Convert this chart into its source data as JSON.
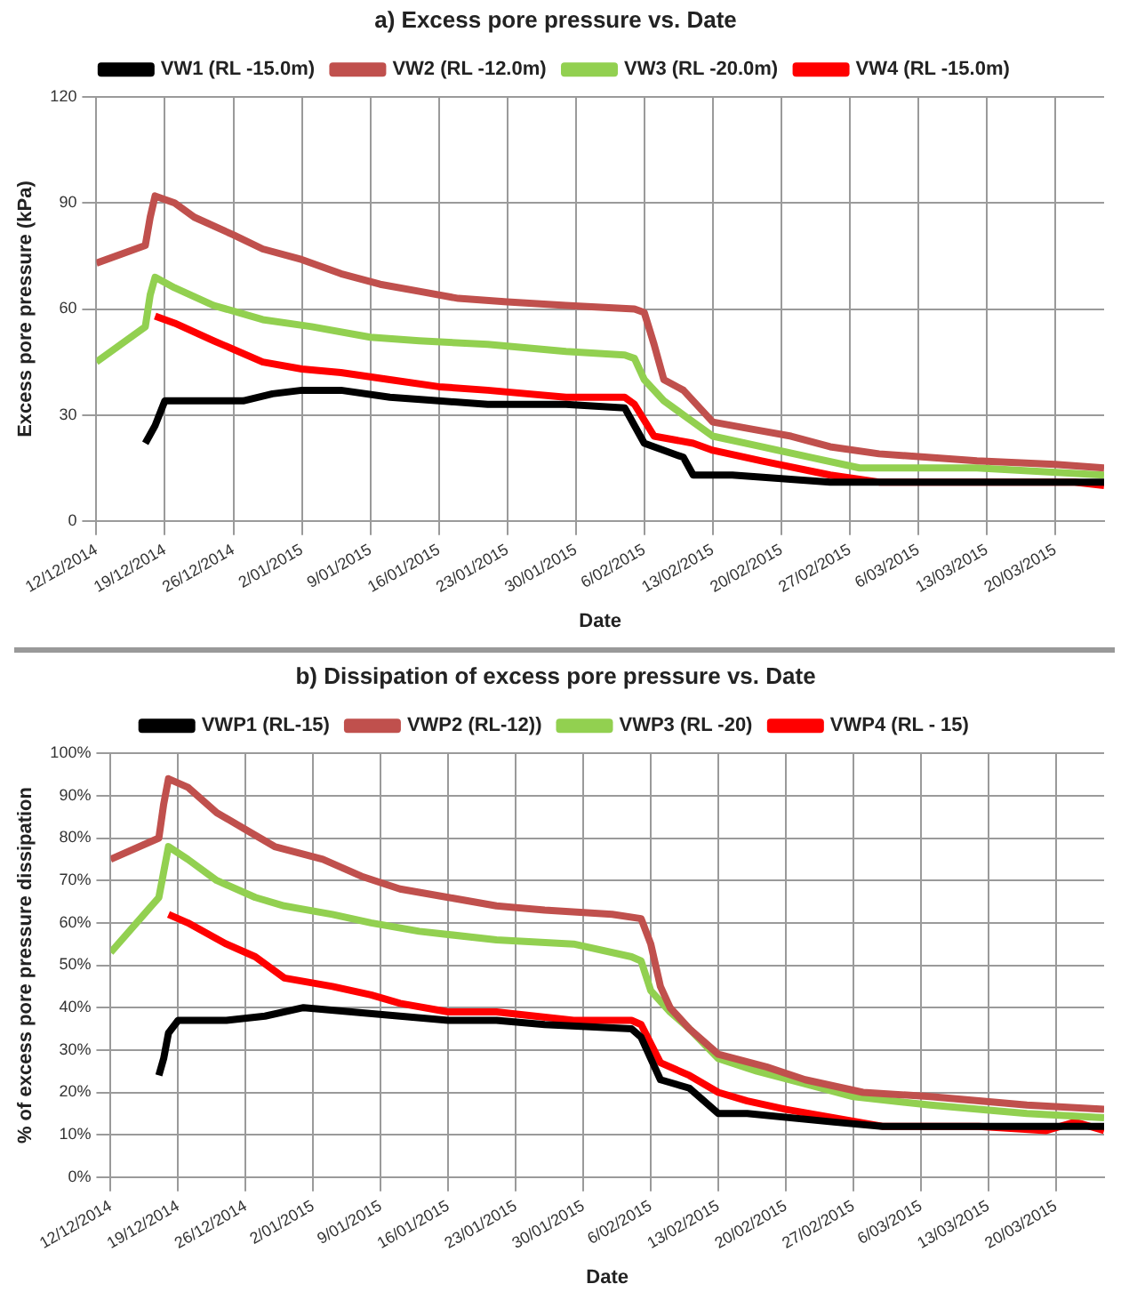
{
  "chart_data": [
    {
      "type": "line",
      "title": "a) Excess pore pressure vs. Date",
      "xlabel": "Date",
      "ylabel": "Excess pore pressure (kPa)",
      "xlim": [
        "2014-12-12",
        "2015-03-25"
      ],
      "xticks": [
        {
          "value": "2014-12-12",
          "label": "12/12/2014"
        },
        {
          "value": "2014-12-19",
          "label": "19/12/2014"
        },
        {
          "value": "2014-12-26",
          "label": "26/12/2014"
        },
        {
          "value": "2015-01-02",
          "label": "2/01/2015"
        },
        {
          "value": "2015-01-09",
          "label": "9/01/2015"
        },
        {
          "value": "2015-01-16",
          "label": "16/01/2015"
        },
        {
          "value": "2015-01-23",
          "label": "23/01/2015"
        },
        {
          "value": "2015-01-30",
          "label": "30/01/2015"
        },
        {
          "value": "2015-02-06",
          "label": "6/02/2015"
        },
        {
          "value": "2015-02-13",
          "label": "13/02/2015"
        },
        {
          "value": "2015-02-20",
          "label": "20/02/2015"
        },
        {
          "value": "2015-02-27",
          "label": "27/02/2015"
        },
        {
          "value": "2015-03-06",
          "label": "6/03/2015"
        },
        {
          "value": "2015-03-13",
          "label": "13/03/2015"
        },
        {
          "value": "2015-03-20",
          "label": "20/03/2015"
        }
      ],
      "ylim": [
        0,
        120
      ],
      "yticks": [
        0,
        30,
        60,
        90,
        120
      ],
      "grid": true,
      "legend": "top",
      "series": [
        {
          "name": "VW1 (RL -15.0m)",
          "color": "#000000",
          "x": [
            "2014-12-17",
            "2014-12-18",
            "2014-12-19",
            "2014-12-22",
            "2014-12-27",
            "2014-12-30",
            "2015-01-02",
            "2015-01-06",
            "2015-01-11",
            "2015-01-16",
            "2015-01-21",
            "2015-01-29",
            "2015-02-04",
            "2015-02-06",
            "2015-02-10",
            "2015-02-11",
            "2015-02-15",
            "2015-02-20",
            "2015-02-25",
            "2015-03-02",
            "2015-03-25"
          ],
          "values": [
            22,
            27,
            34,
            34,
            34,
            36,
            37,
            37,
            35,
            34,
            33,
            33,
            32,
            22,
            18,
            13,
            13,
            12,
            11,
            11,
            11
          ]
        },
        {
          "name": "VW2 (RL -12.0m)",
          "color": "#c0504d",
          "x": [
            "2014-12-12",
            "2014-12-17",
            "2014-12-17T12:00",
            "2014-12-18",
            "2014-12-20",
            "2014-12-22",
            "2014-12-26",
            "2014-12-29",
            "2015-01-02",
            "2015-01-06",
            "2015-01-10",
            "2015-01-14",
            "2015-01-18",
            "2015-01-23",
            "2015-01-29",
            "2015-02-05",
            "2015-02-06",
            "2015-02-07",
            "2015-02-08",
            "2015-02-10",
            "2015-02-13",
            "2015-02-17",
            "2015-02-21",
            "2015-02-25",
            "2015-03-02",
            "2015-03-12",
            "2015-03-20",
            "2015-03-25"
          ],
          "values": [
            73,
            78,
            86,
            92,
            90,
            86,
            81,
            77,
            74,
            70,
            67,
            65,
            63,
            62,
            61,
            60,
            59,
            50,
            40,
            37,
            28,
            26,
            24,
            21,
            19,
            17,
            16,
            15
          ]
        },
        {
          "name": "VW3 (RL -20.0m)",
          "color": "#92d050",
          "x": [
            "2014-12-12",
            "2014-12-17",
            "2014-12-17T12:00",
            "2014-12-18",
            "2014-12-20",
            "2014-12-24",
            "2014-12-29",
            "2015-01-03",
            "2015-01-09",
            "2015-01-14",
            "2015-01-21",
            "2015-01-29",
            "2015-02-04",
            "2015-02-05",
            "2015-02-06",
            "2015-02-08",
            "2015-02-10",
            "2015-02-13",
            "2015-02-18",
            "2015-02-23",
            "2015-02-28",
            "2015-03-12",
            "2015-03-25"
          ],
          "values": [
            45,
            55,
            64,
            69,
            66,
            61,
            57,
            55,
            52,
            51,
            50,
            48,
            47,
            46,
            40,
            34,
            30,
            24,
            21,
            18,
            15,
            15,
            13
          ]
        },
        {
          "name": "VW4 (RL -15.0m)",
          "color": "#ff0000",
          "x": [
            "2014-12-18",
            "2014-12-20",
            "2014-12-24",
            "2014-12-29",
            "2015-01-02",
            "2015-01-06",
            "2015-01-11",
            "2015-01-16",
            "2015-01-21",
            "2015-01-29",
            "2015-02-04",
            "2015-02-05",
            "2015-02-07",
            "2015-02-11",
            "2015-02-13",
            "2015-02-18",
            "2015-02-25",
            "2015-03-02",
            "2015-03-12",
            "2015-03-22",
            "2015-03-25"
          ],
          "values": [
            58,
            56,
            51,
            45,
            43,
            42,
            40,
            38,
            37,
            35,
            35,
            33,
            24,
            22,
            20,
            17,
            13,
            11,
            11,
            11,
            10
          ]
        }
      ]
    },
    {
      "type": "line",
      "title": "b) Dissipation of excess pore pressure vs. Date",
      "xlabel": "Date",
      "ylabel": "% of excess pore pressure dissipation",
      "xlim": [
        "2014-12-12",
        "2015-03-25"
      ],
      "xticks": [
        {
          "value": "2014-12-12",
          "label": "12/12/2014"
        },
        {
          "value": "2014-12-19",
          "label": "19/12/2014"
        },
        {
          "value": "2014-12-26",
          "label": "26/12/2014"
        },
        {
          "value": "2015-01-02",
          "label": "2/01/2015"
        },
        {
          "value": "2015-01-09",
          "label": "9/01/2015"
        },
        {
          "value": "2015-01-16",
          "label": "16/01/2015"
        },
        {
          "value": "2015-01-23",
          "label": "23/01/2015"
        },
        {
          "value": "2015-01-30",
          "label": "30/01/2015"
        },
        {
          "value": "2015-02-06",
          "label": "6/02/2015"
        },
        {
          "value": "2015-02-13",
          "label": "13/02/2015"
        },
        {
          "value": "2015-02-20",
          "label": "20/02/2015"
        },
        {
          "value": "2015-02-27",
          "label": "27/02/2015"
        },
        {
          "value": "2015-03-06",
          "label": "6/03/2015"
        },
        {
          "value": "2015-03-13",
          "label": "13/03/2015"
        },
        {
          "value": "2015-03-20",
          "label": "20/03/2015"
        }
      ],
      "ylim": [
        0,
        100
      ],
      "yticks": [
        {
          "value": 0,
          "label": "0%"
        },
        {
          "value": 10,
          "label": "10%"
        },
        {
          "value": 20,
          "label": "20%"
        },
        {
          "value": 30,
          "label": "30%"
        },
        {
          "value": 40,
          "label": "40%"
        },
        {
          "value": 50,
          "label": "50%"
        },
        {
          "value": 60,
          "label": "60%"
        },
        {
          "value": 70,
          "label": "70%"
        },
        {
          "value": 80,
          "label": "80%"
        },
        {
          "value": 90,
          "label": "90%"
        },
        {
          "value": 100,
          "label": "100%"
        }
      ],
      "grid": true,
      "legend": "top",
      "series": [
        {
          "name": "VWP1 (RL-15)",
          "color": "#000000",
          "x": [
            "2014-12-17",
            "2014-12-17T12:00",
            "2014-12-18",
            "2014-12-19",
            "2014-12-24",
            "2014-12-28",
            "2015-01-01",
            "2015-01-06",
            "2015-01-11",
            "2015-01-16",
            "2015-01-21",
            "2015-01-26",
            "2015-02-04",
            "2015-02-05",
            "2015-02-07",
            "2015-02-10",
            "2015-02-13",
            "2015-02-16",
            "2015-02-25",
            "2015-03-02",
            "2015-03-12",
            "2015-03-25"
          ],
          "values": [
            24,
            28,
            34,
            37,
            37,
            38,
            40,
            39,
            38,
            37,
            37,
            36,
            35,
            33,
            23,
            21,
            15,
            15,
            13,
            12,
            12,
            12
          ]
        },
        {
          "name": "VWP2 (RL-12))",
          "color": "#c0504d",
          "x": [
            "2014-12-12",
            "2014-12-17",
            "2014-12-17T12:00",
            "2014-12-18",
            "2014-12-20",
            "2014-12-23",
            "2014-12-26",
            "2014-12-29",
            "2015-01-03",
            "2015-01-07",
            "2015-01-11",
            "2015-01-16",
            "2015-01-21",
            "2015-01-26",
            "2015-02-02",
            "2015-02-05",
            "2015-02-06",
            "2015-02-07",
            "2015-02-08",
            "2015-02-10",
            "2015-02-13",
            "2015-02-18",
            "2015-02-22",
            "2015-02-28",
            "2015-03-07",
            "2015-03-17",
            "2015-03-25"
          ],
          "values": [
            75,
            80,
            88,
            94,
            92,
            86,
            82,
            78,
            75,
            71,
            68,
            66,
            64,
            63,
            62,
            61,
            55,
            45,
            40,
            35,
            29,
            26,
            23,
            20,
            19,
            17,
            16
          ]
        },
        {
          "name": "VWP3 (RL -20)",
          "color": "#92d050",
          "x": [
            "2014-12-12",
            "2014-12-17",
            "2014-12-17T12:00",
            "2014-12-18",
            "2014-12-20",
            "2014-12-23",
            "2014-12-27",
            "2014-12-30",
            "2015-01-04",
            "2015-01-08",
            "2015-01-13",
            "2015-01-21",
            "2015-01-29",
            "2015-02-04",
            "2015-02-05",
            "2015-02-06",
            "2015-02-08",
            "2015-02-10",
            "2015-02-13",
            "2015-02-17",
            "2015-02-22",
            "2015-02-27",
            "2015-03-07",
            "2015-03-17",
            "2015-03-25"
          ],
          "values": [
            53,
            66,
            72,
            78,
            75,
            70,
            66,
            64,
            62,
            60,
            58,
            56,
            55,
            52,
            51,
            44,
            39,
            35,
            28,
            25,
            22,
            19,
            17,
            15,
            14
          ]
        },
        {
          "name": "VWP4 (RL - 15)",
          "color": "#ff0000",
          "x": [
            "2014-12-18",
            "2014-12-20",
            "2014-12-24",
            "2014-12-27",
            "2014-12-30",
            "2015-01-04",
            "2015-01-08",
            "2015-01-11",
            "2015-01-16",
            "2015-01-21",
            "2015-01-29",
            "2015-02-04",
            "2015-02-05",
            "2015-02-07",
            "2015-02-10",
            "2015-02-13",
            "2015-02-16",
            "2015-02-20",
            "2015-02-25",
            "2015-03-02",
            "2015-03-12",
            "2015-03-19",
            "2015-03-22",
            "2015-03-25"
          ],
          "values": [
            62,
            60,
            55,
            52,
            47,
            45,
            43,
            41,
            39,
            39,
            37,
            37,
            36,
            27,
            24,
            20,
            18,
            16,
            14,
            12,
            12,
            11,
            13,
            11
          ]
        }
      ]
    }
  ]
}
